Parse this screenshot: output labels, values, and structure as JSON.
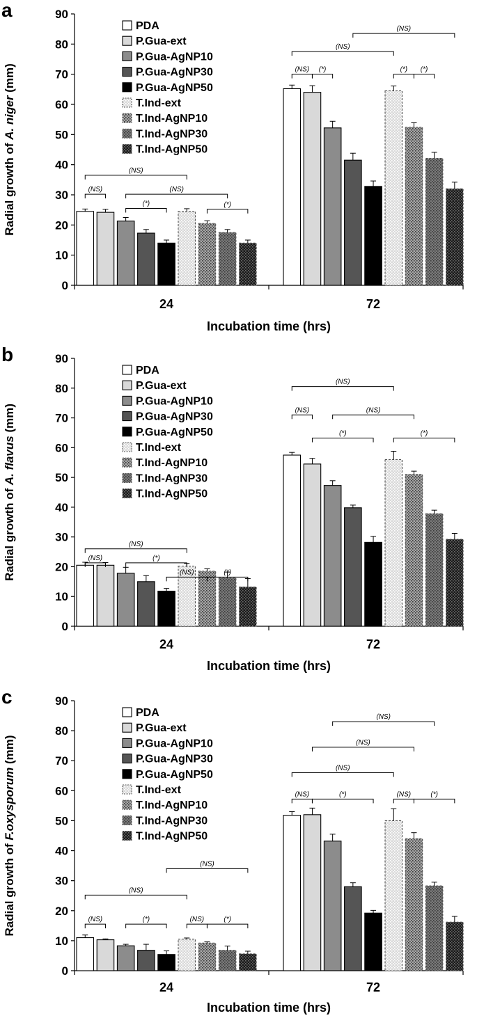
{
  "series_styles": [
    {
      "name": "PDA",
      "fill": "#ffffff",
      "pattern": "solid",
      "stroke": "#000000",
      "dash": false
    },
    {
      "name": "P.Gua-ext",
      "fill": "#d9d9d9",
      "pattern": "solid",
      "stroke": "#000000",
      "dash": false
    },
    {
      "name": "P.Gua-AgNP10",
      "fill": "#8c8c8c",
      "pattern": "solid",
      "stroke": "#000000",
      "dash": false
    },
    {
      "name": "P.Gua-AgNP30",
      "fill": "#555555",
      "pattern": "solid",
      "stroke": "#000000",
      "dash": false
    },
    {
      "name": "P.Gua-AgNP50",
      "fill": "#000000",
      "pattern": "solid",
      "stroke": "#000000",
      "dash": false
    },
    {
      "name": "T.Ind-ext",
      "fill": "#d9d9d9",
      "pattern": "dots",
      "stroke": "#555555",
      "dash": true
    },
    {
      "name": "T.Ind-AgNP10",
      "fill": "#a6a6a6",
      "pattern": "dots",
      "stroke": "#555555",
      "dash": true
    },
    {
      "name": "T.Ind-AgNP30",
      "fill": "#7a7a7a",
      "pattern": "dots",
      "stroke": "#555555",
      "dash": true
    },
    {
      "name": "T.Ind-AgNP50",
      "fill": "#1a1a1a",
      "pattern": "dots",
      "stroke": "#555555",
      "dash": true
    }
  ],
  "chart_data": [
    {
      "panel": "a",
      "type": "bar",
      "ylabel_prefix": "Radial growth of ",
      "ylabel_species": "A. niger",
      "ylabel_suffix": " (mm)",
      "xlabel": "Incubation time (hrs)",
      "categories": [
        "24",
        "72"
      ],
      "ylim": [
        0,
        90
      ],
      "yticks": [
        0,
        10,
        20,
        30,
        40,
        50,
        60,
        70,
        80,
        90
      ],
      "legend": [
        "PDA",
        "P.Gua-ext",
        "P.Gua-AgNP10",
        "P.Gua-AgNP30",
        "P.Gua-AgNP50",
        "T.Ind-ext",
        "T.Ind-AgNP10",
        "T.Ind-AgNP30",
        "T.Ind-AgNP50"
      ],
      "series": [
        {
          "name": "PDA",
          "values": [
            24.5,
            65.2
          ],
          "errors": [
            0.8,
            1.2
          ]
        },
        {
          "name": "P.Gua-ext",
          "values": [
            24.2,
            64.0
          ],
          "errors": [
            1.0,
            2.2
          ]
        },
        {
          "name": "P.Gua-AgNP10",
          "values": [
            21.3,
            52.2
          ],
          "errors": [
            1.2,
            2.2
          ]
        },
        {
          "name": "P.Gua-AgNP30",
          "values": [
            17.3,
            41.5
          ],
          "errors": [
            1.2,
            2.3
          ]
        },
        {
          "name": "P.Gua-AgNP50",
          "values": [
            14.0,
            32.8
          ],
          "errors": [
            1.0,
            1.8
          ]
        },
        {
          "name": "T.Ind-ext",
          "values": [
            24.5,
            64.5
          ],
          "errors": [
            0.9,
            1.6
          ]
        },
        {
          "name": "T.Ind-AgNP10",
          "values": [
            20.5,
            52.4
          ],
          "errors": [
            0.9,
            1.5
          ]
        },
        {
          "name": "T.Ind-AgNP30",
          "values": [
            17.5,
            42.1
          ],
          "errors": [
            1.0,
            2.0
          ]
        },
        {
          "name": "T.Ind-AgNP50",
          "values": [
            14.0,
            32.0
          ],
          "errors": [
            1.0,
            2.2
          ]
        }
      ],
      "brackets": [
        {
          "cat": 0,
          "from": 0,
          "to": 5,
          "y": 36.5,
          "label": "(NS)"
        },
        {
          "cat": 0,
          "from": 0,
          "to": 1,
          "y": 30.2,
          "label": "(NS)"
        },
        {
          "cat": 0,
          "from": 2,
          "to": 7,
          "y": 30.2,
          "label": "(NS)"
        },
        {
          "cat": 0,
          "from": 2,
          "to": 4,
          "y": 25.5,
          "label": "(*)"
        },
        {
          "cat": 0,
          "from": 6,
          "to": 8,
          "y": 25.2,
          "label": "(*)"
        },
        {
          "cat": 1,
          "from": 3,
          "to": 8,
          "y": 83.5,
          "label": "(NS)"
        },
        {
          "cat": 1,
          "from": 0,
          "to": 5,
          "y": 77.5,
          "label": "(NS)"
        },
        {
          "cat": 1,
          "from": 0,
          "to": 1,
          "y": 70.0,
          "label": "(NS)"
        },
        {
          "cat": 1,
          "from": 1,
          "to": 2,
          "y": 70.0,
          "label": "(*)"
        },
        {
          "cat": 1,
          "from": 5,
          "to": 6,
          "y": 70.0,
          "label": "(*)"
        },
        {
          "cat": 1,
          "from": 6,
          "to": 7,
          "y": 70.0,
          "label": "(*)"
        }
      ]
    },
    {
      "panel": "b",
      "type": "bar",
      "ylabel_prefix": "Radial growth of ",
      "ylabel_species": "A. flavus",
      "ylabel_suffix": " (mm)",
      "xlabel": "Incubation time (hrs)",
      "categories": [
        "24",
        "72"
      ],
      "ylim": [
        0,
        90
      ],
      "yticks": [
        0,
        10,
        20,
        30,
        40,
        50,
        60,
        70,
        80,
        90
      ],
      "legend": [
        "PDA",
        "P.Gua-ext",
        "P.Gua-AgNP10",
        "P.Gua-AgNP30",
        "P.Gua-AgNP50",
        "T.Ind-ext",
        "T.Ind-AgNP10",
        "T.Ind-AgNP30",
        "T.Ind-AgNP50"
      ],
      "series": [
        {
          "name": "PDA",
          "values": [
            20.5,
            57.5
          ],
          "errors": [
            1.0,
            0.9
          ]
        },
        {
          "name": "P.Gua-ext",
          "values": [
            20.5,
            54.5
          ],
          "errors": [
            0.9,
            1.9
          ]
        },
        {
          "name": "P.Gua-AgNP10",
          "values": [
            17.8,
            47.3
          ],
          "errors": [
            2.0,
            1.6
          ]
        },
        {
          "name": "P.Gua-AgNP30",
          "values": [
            15.0,
            39.8
          ],
          "errors": [
            2.0,
            0.9
          ]
        },
        {
          "name": "P.Gua-AgNP50",
          "values": [
            11.8,
            28.2
          ],
          "errors": [
            0.9,
            2.0
          ]
        },
        {
          "name": "T.Ind-ext",
          "values": [
            20.2,
            56.0
          ],
          "errors": [
            0.9,
            2.8
          ]
        },
        {
          "name": "T.Ind-AgNP10",
          "values": [
            18.5,
            51.0
          ],
          "errors": [
            0.8,
            1.1
          ]
        },
        {
          "name": "T.Ind-AgNP30",
          "values": [
            16.2,
            37.8
          ],
          "errors": [
            2.0,
            1.2
          ]
        },
        {
          "name": "T.Ind-AgNP50",
          "values": [
            13.2,
            29.2
          ],
          "errors": [
            2.8,
            2.0
          ]
        }
      ],
      "brackets": [
        {
          "cat": 0,
          "from": 0,
          "to": 5,
          "y": 26.0,
          "label": "(NS)"
        },
        {
          "cat": 0,
          "from": 0,
          "to": 1,
          "y": 21.3,
          "label": "(NS)"
        },
        {
          "cat": 0,
          "from": 2,
          "to": 5,
          "y": 21.3,
          "label": "(*)"
        },
        {
          "cat": 0,
          "from": 4,
          "to": 6,
          "y": 16.5,
          "label": "(NS)"
        },
        {
          "cat": 0,
          "from": 6,
          "to": 8,
          "y": 16.5,
          "label": "(*)"
        },
        {
          "cat": 1,
          "from": 0,
          "to": 5,
          "y": 80.5,
          "label": "(NS)"
        },
        {
          "cat": 1,
          "from": 0,
          "to": 1,
          "y": 71.0,
          "label": "(NS)"
        },
        {
          "cat": 1,
          "from": 2,
          "to": 6,
          "y": 71.0,
          "label": "(NS)"
        },
        {
          "cat": 1,
          "from": 1,
          "to": 4,
          "y": 63.2,
          "label": "(*)"
        },
        {
          "cat": 1,
          "from": 5,
          "to": 8,
          "y": 63.2,
          "label": "(*)"
        }
      ]
    },
    {
      "panel": "c",
      "type": "bar",
      "ylabel_prefix": "Radial growth of ",
      "ylabel_species": "F.oxysporum",
      "ylabel_suffix": " (mm)",
      "xlabel": "Incubation time (hrs)",
      "categories": [
        "24",
        "72"
      ],
      "ylim": [
        0,
        90
      ],
      "yticks": [
        0,
        10,
        20,
        30,
        40,
        50,
        60,
        70,
        80,
        90
      ],
      "legend": [
        "PDA",
        "P.Gua-ext",
        "P.Gua-AgNP10",
        "P.Gua-AgNP30",
        "P.Gua-AgNP50",
        "T.Ind-ext",
        "T.Ind-AgNP10",
        "T.Ind-AgNP30",
        "T.Ind-AgNP50"
      ],
      "series": [
        {
          "name": "PDA",
          "values": [
            11.0,
            51.8
          ],
          "errors": [
            0.9,
            1.2
          ]
        },
        {
          "name": "P.Gua-ext",
          "values": [
            10.3,
            52.0
          ],
          "errors": [
            0.3,
            2.2
          ]
        },
        {
          "name": "P.Gua-AgNP10",
          "values": [
            8.3,
            43.2
          ],
          "errors": [
            0.5,
            2.3
          ]
        },
        {
          "name": "P.Gua-AgNP30",
          "values": [
            6.8,
            28.0
          ],
          "errors": [
            2.0,
            1.3
          ]
        },
        {
          "name": "P.Gua-AgNP50",
          "values": [
            5.4,
            19.2
          ],
          "errors": [
            1.2,
            0.9
          ]
        },
        {
          "name": "T.Ind-ext",
          "values": [
            10.5,
            50.0
          ],
          "errors": [
            0.4,
            4.0
          ]
        },
        {
          "name": "T.Ind-AgNP10",
          "values": [
            9.2,
            44.0
          ],
          "errors": [
            0.4,
            2.0
          ]
        },
        {
          "name": "T.Ind-AgNP30",
          "values": [
            6.8,
            28.3
          ],
          "errors": [
            1.4,
            1.2
          ]
        },
        {
          "name": "T.Ind-AgNP50",
          "values": [
            5.6,
            16.2
          ],
          "errors": [
            0.9,
            1.9
          ]
        }
      ],
      "brackets": [
        {
          "cat": 0,
          "from": 4,
          "to": 8,
          "y": 34.0,
          "label": "(NS)"
        },
        {
          "cat": 0,
          "from": 0,
          "to": 5,
          "y": 25.2,
          "label": "(NS)"
        },
        {
          "cat": 0,
          "from": 0,
          "to": 1,
          "y": 15.5,
          "label": "(NS)"
        },
        {
          "cat": 0,
          "from": 2,
          "to": 4,
          "y": 15.5,
          "label": "(*)"
        },
        {
          "cat": 0,
          "from": 5,
          "to": 6,
          "y": 15.5,
          "label": "(NS)"
        },
        {
          "cat": 0,
          "from": 6,
          "to": 8,
          "y": 15.5,
          "label": "(*)"
        },
        {
          "cat": 1,
          "from": 2,
          "to": 7,
          "y": 83.0,
          "label": "(NS)"
        },
        {
          "cat": 1,
          "from": 1,
          "to": 6,
          "y": 74.5,
          "label": "(NS)"
        },
        {
          "cat": 1,
          "from": 0,
          "to": 5,
          "y": 66.0,
          "label": "(NS)"
        },
        {
          "cat": 1,
          "from": 0,
          "to": 1,
          "y": 57.2,
          "label": "(NS)"
        },
        {
          "cat": 1,
          "from": 1,
          "to": 4,
          "y": 57.2,
          "label": "(*)"
        },
        {
          "cat": 1,
          "from": 5,
          "to": 6,
          "y": 57.2,
          "label": "(NS)"
        },
        {
          "cat": 1,
          "from": 6,
          "to": 8,
          "y": 57.2,
          "label": "(*)"
        }
      ]
    }
  ]
}
